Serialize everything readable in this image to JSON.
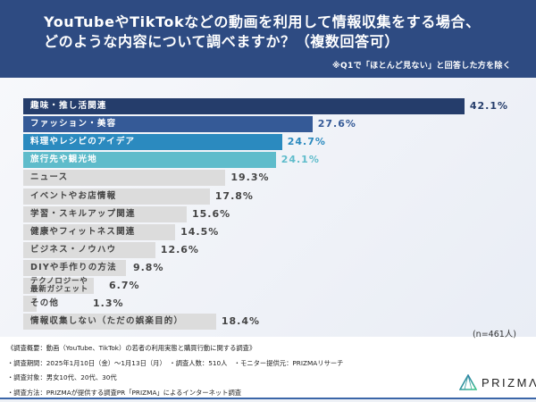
{
  "header": {
    "title_line1": "YouTubeやTikTokなどの動画を利用して情報収集をする場合、",
    "title_line2": "どのような内容について調べますか？（複数回答可）",
    "note": "※Q1で「ほとんど見ない」と回答した方を除く",
    "background": "#2e4b82"
  },
  "chart_data": {
    "type": "bar",
    "orientation": "horizontal",
    "title": "YouTubeやTikTokなどの動画を利用して情報収集をする場合、どのような内容について調べますか？（複数回答可）",
    "xlabel": "",
    "ylabel": "",
    "unit": "%",
    "sample": "(n=461人)",
    "categories": [
      "趣味・推し活関連",
      "ファッション・美容",
      "料理やレシピのアイデア",
      "旅行先や観光地",
      "ニュース",
      "イベントやお店情報",
      "学習・スキルアップ関連",
      "健康やフィットネス関連",
      "ビジネス・ノウハウ",
      "DIYや手作りの方法",
      "テクノロジーや最新ガジェット",
      "その他",
      "情報収集しない（ただの娯楽目的）"
    ],
    "values": [
      42.1,
      27.6,
      24.7,
      24.1,
      19.3,
      17.8,
      15.6,
      14.5,
      12.6,
      9.8,
      6.7,
      1.3,
      18.4
    ],
    "value_labels": [
      "42.1%",
      "27.6%",
      "24.7%",
      "24.1%",
      "19.3%",
      "17.8%",
      "15.6%",
      "14.5%",
      "12.6%",
      "9.8%",
      "6.7%",
      "1.3%",
      "18.4%"
    ],
    "bar_colors": [
      "#253d6b",
      "#355a97",
      "#2b8abf",
      "#5fbccb",
      "#dcdcdc",
      "#dcdcdc",
      "#dcdcdc",
      "#dcdcdc",
      "#dcdcdc",
      "#dcdcdc",
      "#dcdcdc",
      "#dcdcdc",
      "#dcdcdc"
    ],
    "label_colors": [
      "#ffffff",
      "#ffffff",
      "#ffffff",
      "#ffffff",
      "#444444",
      "#444444",
      "#444444",
      "#444444",
      "#444444",
      "#444444",
      "#444444",
      "#444444",
      "#444444"
    ],
    "value_colors": [
      "#253d6b",
      "#355a97",
      "#2b8abf",
      "#5fbccb",
      "#444444",
      "#444444",
      "#444444",
      "#444444",
      "#444444",
      "#444444",
      "#444444",
      "#444444",
      "#444444"
    ],
    "grid": false,
    "legend": "none"
  },
  "sample_size": "(n=461人)",
  "footer": {
    "line1": "《調査概要：動画（YouTube、TikTok）の若者の利用実態と購買行動に関する調査》",
    "line2": "・調査期間：2025年1月10日（金）～1月13日（月）　・調査人数：510人　・モニター提供元：PRIZMAリサーチ",
    "line3": "・調査対象：男女10代、20代、30代",
    "line4": "・調査方法：PRIZMAが提供する調査PR「PRIZMA」によるインターネット調査"
  },
  "logo": {
    "text": "PRIZMΛ",
    "icon": "prism-triangle-icon"
  }
}
